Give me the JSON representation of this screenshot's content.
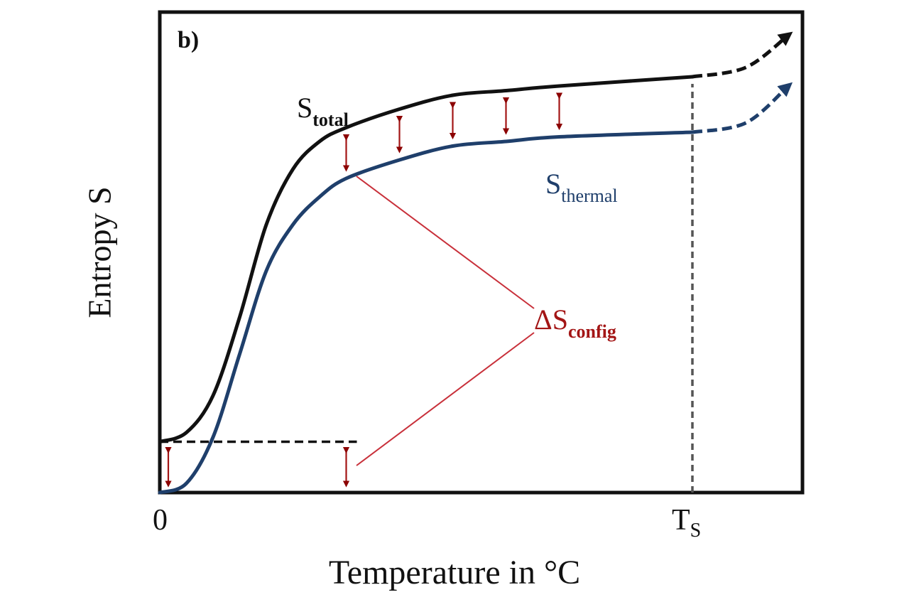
{
  "chart_data": {
    "type": "line",
    "panel_label": "b)",
    "title": "",
    "xlabel": "Temperature in °C",
    "ylabel": "Entropy S",
    "x_ticks": [
      {
        "label": "0",
        "value": 0
      },
      {
        "label_main": "T",
        "label_sub": "S",
        "value": 1.0
      }
    ],
    "x_range": [
      0,
      1.2
    ],
    "y_range": [
      0,
      1
    ],
    "grid": false,
    "legend": "none (inline labels)",
    "series": [
      {
        "name": "S_total",
        "label_main": "S",
        "label_sub": "total",
        "color": "#111111",
        "style": "solid, dashed beyond T_S with arrow",
        "x": [
          0,
          0.05,
          0.1,
          0.15,
          0.2,
          0.25,
          0.3,
          0.35,
          0.45,
          0.55,
          0.65,
          0.75,
          1.0
        ],
        "y": [
          0.11,
          0.13,
          0.21,
          0.38,
          0.58,
          0.7,
          0.76,
          0.79,
          0.83,
          0.86,
          0.87,
          0.88,
          0.9
        ],
        "extrapolation": {
          "x": [
            1.0,
            1.1,
            1.18
          ],
          "y": [
            0.9,
            0.92,
            0.99
          ]
        }
      },
      {
        "name": "S_thermal",
        "label_main": "S",
        "label_sub": "thermal",
        "color": "#1f3f6b",
        "style": "solid, dashed beyond T_S with arrow",
        "x": [
          0,
          0.05,
          0.1,
          0.15,
          0.2,
          0.25,
          0.3,
          0.35,
          0.45,
          0.55,
          0.65,
          0.75,
          1.0
        ],
        "y": [
          0.0,
          0.02,
          0.12,
          0.3,
          0.48,
          0.58,
          0.64,
          0.68,
          0.72,
          0.75,
          0.76,
          0.77,
          0.78
        ],
        "extrapolation": {
          "x": [
            1.0,
            1.1,
            1.18
          ],
          "y": [
            0.78,
            0.8,
            0.88
          ]
        }
      }
    ],
    "reference_lines": [
      {
        "name": "S_total at T=0",
        "type": "horizontal-dashed",
        "y": 0.11,
        "x_from": 0,
        "x_to": 0.37,
        "color": "#111111"
      },
      {
        "name": "T_S",
        "type": "vertical-dashed",
        "x": 1.0,
        "color": "#555555"
      }
    ],
    "annotations": {
      "delta_label_main": "ΔS",
      "delta_label_sub": "config",
      "color": "#a31515",
      "double_arrows_x": [
        0.016,
        0.35,
        0.45,
        0.55,
        0.65,
        0.75
      ],
      "pointer_targets": [
        "arrow at x=0.35 between curves",
        "arrow at x=0.35 below T=0 dashed line"
      ]
    }
  }
}
